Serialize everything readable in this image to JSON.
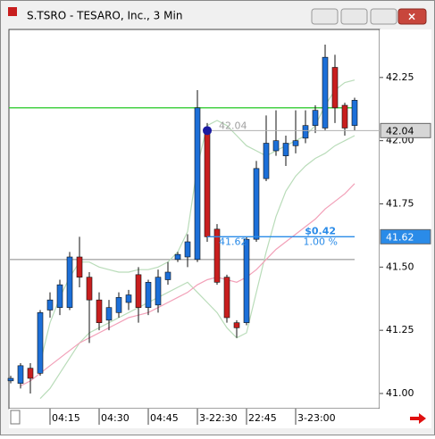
{
  "window_title": "S.TSRO - TESARO, Inc., 3 Min",
  "chart_data": {
    "type": "candlestick",
    "categories": [
      null,
      null,
      null,
      null,
      "04:15",
      null,
      null,
      null,
      null,
      "04:30",
      null,
      null,
      null,
      null,
      "04:45",
      null,
      null,
      null,
      null,
      "3-22:30",
      null,
      null,
      null,
      null,
      "22:45",
      null,
      null,
      null,
      null,
      "3-23:00",
      null,
      null,
      null,
      null,
      null,
      null
    ],
    "open": [
      41.05,
      41.04,
      41.1,
      41.08,
      41.33,
      41.34,
      41.34,
      41.54,
      41.46,
      41.37,
      41.29,
      41.32,
      41.36,
      41.47,
      41.34,
      41.35,
      41.45,
      41.53,
      41.54,
      41.53,
      42.04,
      41.65,
      41.46,
      41.28,
      41.28,
      41.61,
      41.85,
      41.96,
      41.94,
      41.98,
      42.01,
      42.06,
      42.05,
      42.29,
      42.14,
      42.06
    ],
    "high": [
      41.07,
      41.12,
      41.12,
      41.33,
      41.4,
      41.45,
      41.56,
      41.62,
      41.48,
      41.4,
      41.37,
      41.4,
      41.41,
      41.5,
      41.45,
      41.49,
      41.52,
      41.56,
      41.63,
      42.2,
      42.07,
      41.67,
      41.47,
      41.29,
      41.62,
      41.92,
      42.1,
      42.12,
      42.02,
      42.12,
      42.12,
      42.14,
      42.38,
      42.34,
      42.15,
      42.17
    ],
    "low": [
      41.04,
      41.02,
      41.0,
      41.07,
      41.3,
      41.31,
      41.33,
      41.42,
      41.2,
      41.25,
      41.25,
      41.3,
      41.33,
      41.28,
      41.31,
      41.32,
      41.43,
      41.52,
      41.5,
      41.52,
      41.6,
      41.43,
      41.28,
      41.22,
      41.27,
      41.6,
      41.84,
      41.94,
      41.9,
      41.95,
      41.99,
      42.03,
      42.04,
      42.07,
      42.02,
      42.04
    ],
    "close": [
      41.06,
      41.11,
      41.06,
      41.32,
      41.37,
      41.43,
      41.54,
      41.46,
      41.37,
      41.28,
      41.34,
      41.38,
      41.39,
      41.34,
      41.44,
      41.46,
      41.48,
      41.55,
      41.6,
      42.13,
      41.62,
      41.44,
      41.3,
      41.26,
      41.61,
      41.89,
      41.99,
      42.0,
      41.99,
      42.0,
      42.06,
      42.12,
      42.33,
      42.13,
      42.05,
      42.16
    ],
    "up_color": "#1c6fd8",
    "down_color": "#c81e1e",
    "overlays": [
      {
        "color": "#b9dcb9",
        "values": [
          null,
          null,
          null,
          41.12,
          41.28,
          41.38,
          41.46,
          41.52,
          41.52,
          41.5,
          41.49,
          41.48,
          41.48,
          41.49,
          41.49,
          41.5,
          41.52,
          41.56,
          41.64,
          41.9,
          42.06,
          42.08,
          42.06,
          42.02,
          41.98,
          41.96,
          41.94,
          41.96,
          41.98,
          42.0,
          42.02,
          42.06,
          42.14,
          42.2,
          42.23,
          42.24
        ]
      },
      {
        "color": "#b9dcb9",
        "values": [
          null,
          null,
          null,
          40.98,
          41.02,
          41.08,
          41.14,
          41.2,
          41.24,
          41.26,
          41.28,
          41.3,
          41.32,
          41.34,
          41.36,
          41.38,
          41.4,
          41.42,
          41.44,
          41.4,
          41.36,
          41.32,
          41.26,
          41.22,
          41.24,
          41.4,
          41.56,
          41.7,
          41.8,
          41.86,
          41.9,
          41.93,
          41.95,
          41.98,
          42.0,
          42.02
        ]
      },
      {
        "color": "#f2a0b8",
        "values": [
          null,
          41.03,
          41.05,
          41.08,
          41.11,
          41.14,
          41.17,
          41.2,
          41.22,
          41.24,
          41.26,
          41.28,
          41.3,
          41.31,
          41.32,
          41.34,
          41.36,
          41.38,
          41.4,
          41.43,
          41.45,
          41.46,
          41.45,
          41.44,
          41.46,
          41.49,
          41.53,
          41.57,
          41.6,
          41.63,
          41.66,
          41.69,
          41.73,
          41.76,
          41.79,
          41.83
        ]
      }
    ],
    "levels": [
      {
        "value": 42.13,
        "color": "#33cc33"
      },
      {
        "value": 41.53,
        "color": "#a8a8a8"
      }
    ],
    "measure": {
      "start": 42.04,
      "end": 41.62,
      "start_label": "42.04",
      "end_label": "41.62",
      "change_label": "$0.42",
      "percent_label": "1.00 %",
      "color": "#2a8be8"
    },
    "price_markers": [
      {
        "value": 42.04,
        "label": "42.04",
        "color": "#d6d6d6",
        "text_color": "#000000"
      },
      {
        "value": 41.62,
        "label": "41.62",
        "color": "#2a8be8",
        "text_color": "#ffffff"
      }
    ],
    "ylim": [
      40.94,
      42.44
    ],
    "yticks": [
      {
        "value": 41,
        "label": "41.00"
      },
      {
        "value": 41.25,
        "label": "41.25"
      },
      {
        "value": 41.5,
        "label": "41.50"
      },
      {
        "value": 41.75,
        "label": "41.75"
      },
      {
        "value": 42,
        "label": "42.00"
      },
      {
        "value": 42.25,
        "label": "42.25"
      }
    ]
  }
}
